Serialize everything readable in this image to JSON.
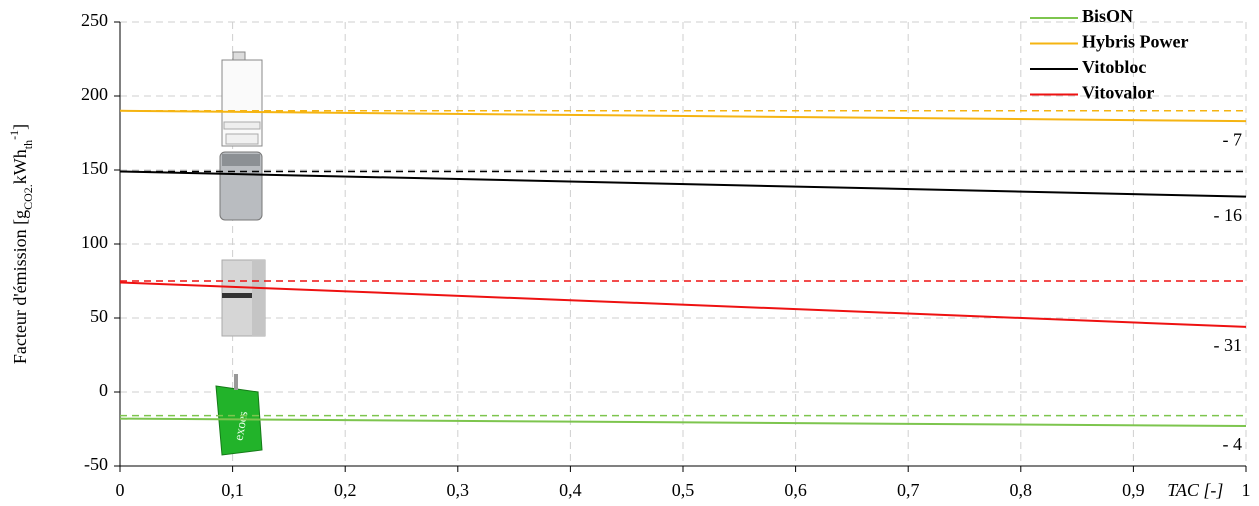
{
  "chart_data": {
    "type": "line",
    "y_label_parts": [
      "Facteur d'émission [g",
      "CO2.",
      "kWh",
      "th",
      "-1",
      "]"
    ],
    "x_label": "TAC [-]",
    "xlim": [
      0,
      1
    ],
    "xticks": [
      0,
      {
        "value": 0.1,
        "label": "0,1"
      },
      {
        "value": 0.2,
        "label": "0,2"
      },
      {
        "value": 0.3,
        "label": "0,3"
      },
      {
        "value": 0.4,
        "label": "0,4"
      },
      {
        "value": 0.5,
        "label": "0,5"
      },
      {
        "value": 0.6,
        "label": "0,6"
      },
      {
        "value": 0.7,
        "label": "0,7"
      },
      {
        "value": 0.8,
        "label": "0,8"
      },
      {
        "value": 0.9,
        "label": "0,9"
      },
      1
    ],
    "ylim": [
      -50,
      250
    ],
    "yticks": [
      -50,
      0,
      50,
      100,
      150,
      200,
      250
    ],
    "grid": true,
    "legend": "top-right",
    "x": [
      0,
      1
    ],
    "series": [
      {
        "name": "BisON",
        "color": "#7dc54e",
        "values": [
          -18,
          -23
        ],
        "reference": -16,
        "annotation": "- 4"
      },
      {
        "name": "Hybris Power",
        "color": "#f5b412",
        "values": [
          190,
          183
        ],
        "reference": 190,
        "annotation": "- 7"
      },
      {
        "name": "Vitobloc",
        "color": "#000000",
        "values": [
          149,
          132
        ],
        "reference": 149,
        "annotation": "- 16"
      },
      {
        "name": "Vitovalor",
        "color": "#ee1111",
        "values": [
          74,
          44
        ],
        "reference": 75,
        "annotation": "- 31"
      }
    ]
  }
}
